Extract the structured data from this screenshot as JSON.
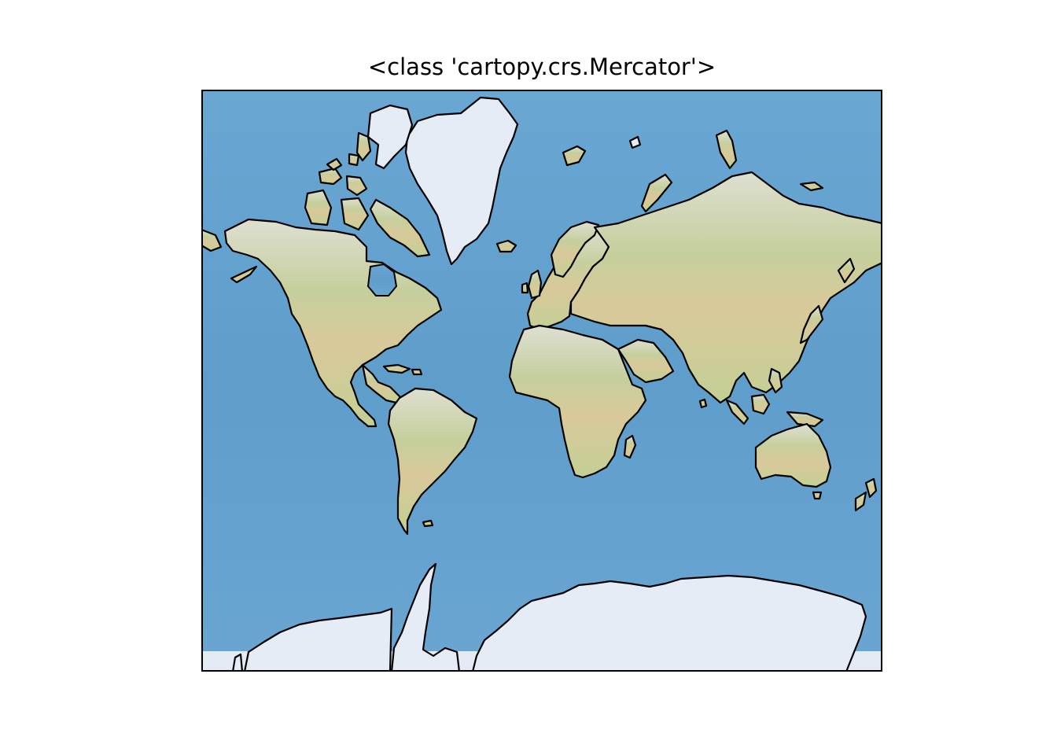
{
  "map": {
    "title": "<class 'cartopy.crs.Mercator'>",
    "projection": "Mercator",
    "basemap": "stock_img",
    "features": [
      "coastlines"
    ],
    "colors": {
      "ocean": "#6fa8d2",
      "ocean_deep": "#5e97c6",
      "land_low": "#c9cf95",
      "land_high": "#dcdcc8",
      "ice": "#e6ecf5",
      "coastline": "#000000"
    }
  }
}
